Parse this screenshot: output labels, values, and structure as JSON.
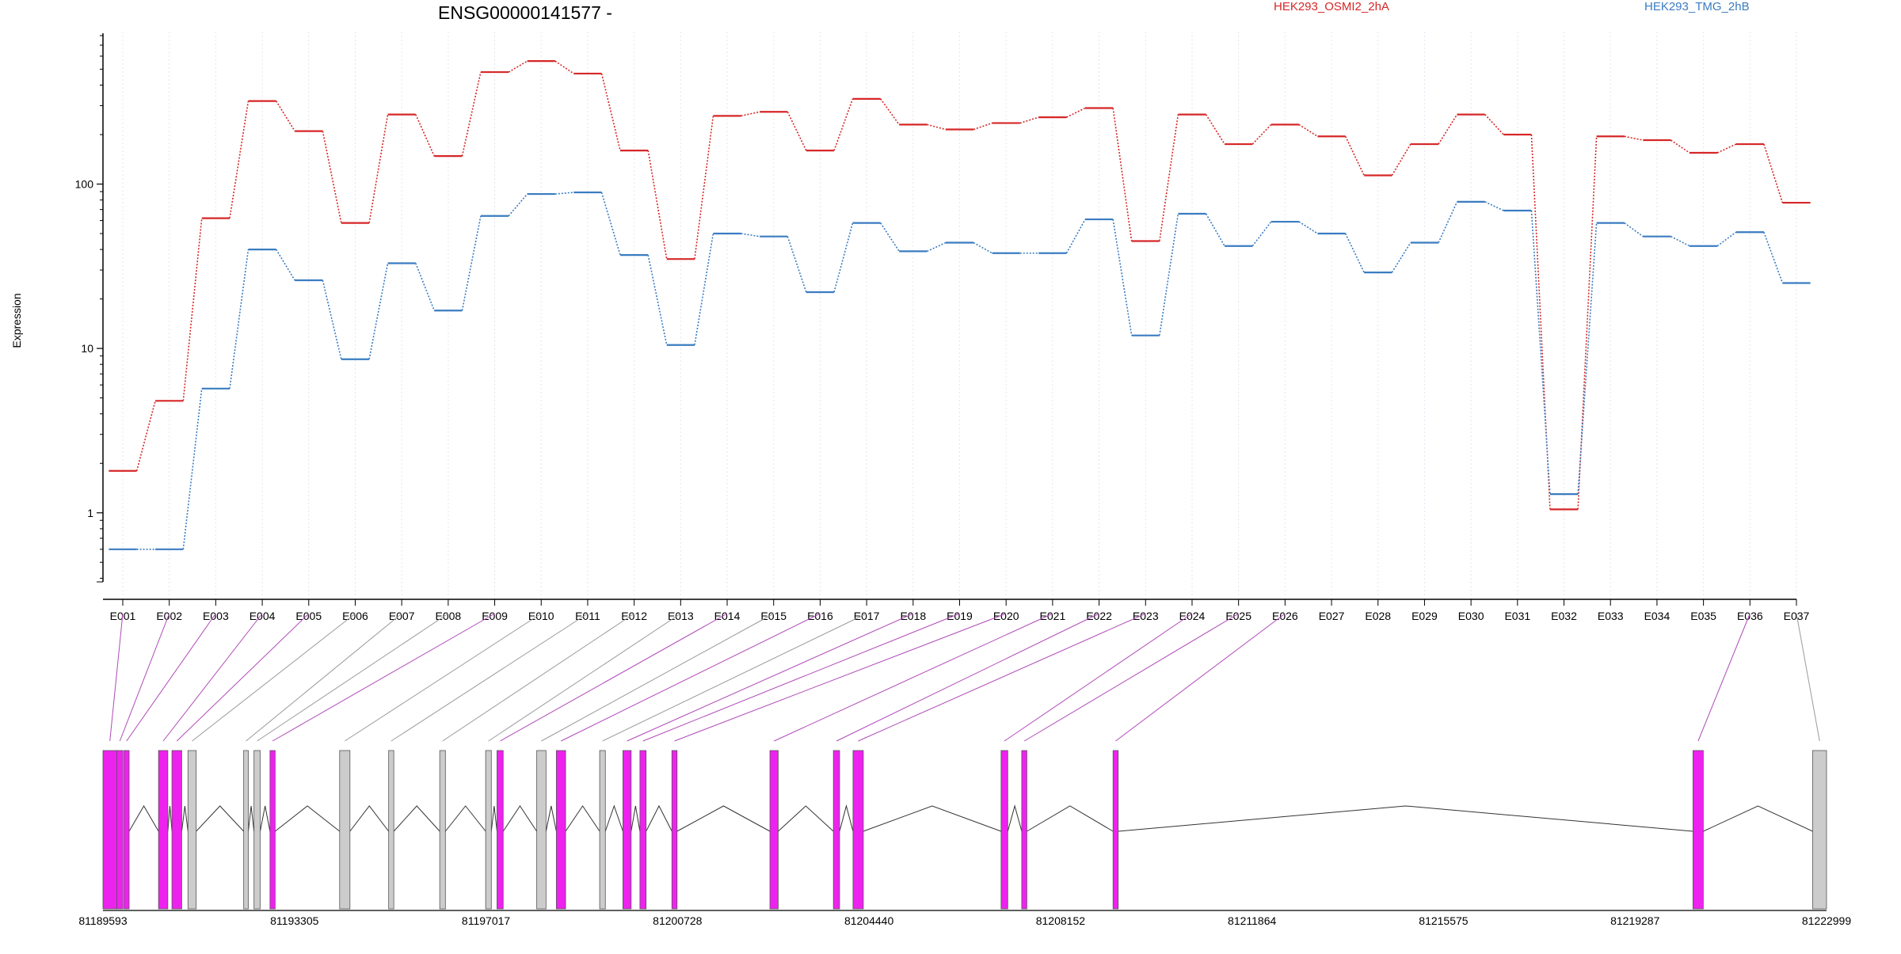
{
  "chart_data": {
    "type": "line",
    "title": "ENSG00000141577 -",
    "ylabel": "Expression",
    "xlabel": "",
    "y_scale": "log",
    "ylim": [
      0.38,
      800
    ],
    "y_ticks": [
      1,
      10,
      100
    ],
    "y_tick_labels": [
      "1",
      "10",
      "100"
    ],
    "grid": "vertical dotted lines at each exon",
    "legend_placement": "top",
    "categories": [
      "E001",
      "E002",
      "E003",
      "E004",
      "E005",
      "E006",
      "E007",
      "E008",
      "E009",
      "E010",
      "E011",
      "E012",
      "E013",
      "E014",
      "E015",
      "E016",
      "E017",
      "E018",
      "E019",
      "E020",
      "E021",
      "E022",
      "E023",
      "E024",
      "E025",
      "E026",
      "E027",
      "E028",
      "E029",
      "E030",
      "E031",
      "E032",
      "E033",
      "E034",
      "E035",
      "E036",
      "E037"
    ],
    "series": [
      {
        "name": "HEK293_OSMI2_2hA",
        "color": "#d62728",
        "values": [
          1.8,
          4.8,
          62,
          320,
          210,
          58,
          265,
          148,
          480,
          560,
          470,
          160,
          35,
          260,
          275,
          160,
          330,
          230,
          215,
          235,
          255,
          290,
          45,
          265,
          175,
          230,
          195,
          113,
          175,
          265,
          200,
          1.05,
          195,
          185,
          155,
          175,
          77
        ]
      },
      {
        "name": "HEK293_TMG_2hB",
        "color": "#3a7cc1",
        "values": [
          0.6,
          0.6,
          5.7,
          40,
          26,
          8.6,
          33,
          17,
          64,
          87,
          89,
          37,
          10.5,
          50,
          48,
          22,
          58,
          39,
          44,
          38,
          38,
          61,
          12,
          66,
          42,
          59,
          50,
          29,
          44,
          78,
          69,
          1.3,
          58,
          48,
          42,
          51,
          25
        ]
      }
    ],
    "gene_model": {
      "coordinate_labels": [
        "81189593",
        "81193305",
        "81197017",
        "81200728",
        "81204440",
        "81208152",
        "81211864",
        "81215575",
        "81219287",
        "81222999"
      ],
      "start": 81189593,
      "end": 81222999,
      "highlight_color": "#ee22ee",
      "neutral_color": "#cccccc",
      "exons": [
        {
          "start": 81189593,
          "end": 81189860,
          "type": "highlight",
          "link": 1
        },
        {
          "start": 81189860,
          "end": 81189980,
          "type": "highlight",
          "link": 2
        },
        {
          "start": 81190000,
          "end": 81190100,
          "type": "highlight",
          "link": 3
        },
        {
          "start": 81190670,
          "end": 81190850,
          "type": "highlight",
          "link": 4
        },
        {
          "start": 81190930,
          "end": 81191120,
          "type": "highlight",
          "link": 5
        },
        {
          "start": 81191240,
          "end": 81191400,
          "type": "neutral",
          "link": 6
        },
        {
          "start": 81192320,
          "end": 81192410,
          "type": "neutral",
          "link": 7
        },
        {
          "start": 81192520,
          "end": 81192640,
          "type": "neutral",
          "link": 8
        },
        {
          "start": 81192830,
          "end": 81192930,
          "type": "highlight",
          "link": 9
        },
        {
          "start": 81194180,
          "end": 81194380,
          "type": "neutral",
          "link": 10
        },
        {
          "start": 81195130,
          "end": 81195230,
          "type": "neutral",
          "link": 11
        },
        {
          "start": 81196120,
          "end": 81196230,
          "type": "neutral",
          "link": 12
        },
        {
          "start": 81197010,
          "end": 81197120,
          "type": "neutral",
          "link": 13
        },
        {
          "start": 81197230,
          "end": 81197350,
          "type": "highlight",
          "link": 14
        },
        {
          "start": 81198000,
          "end": 81198180,
          "type": "neutral",
          "link": 15
        },
        {
          "start": 81198380,
          "end": 81198560,
          "type": "highlight",
          "link": 16
        },
        {
          "start": 81199220,
          "end": 81199330,
          "type": "neutral",
          "link": 17
        },
        {
          "start": 81199670,
          "end": 81199830,
          "type": "highlight",
          "link": 18
        },
        {
          "start": 81200000,
          "end": 81200120,
          "type": "highlight",
          "link": 19
        },
        {
          "start": 81200620,
          "end": 81200720,
          "type": "highlight",
          "link": 20
        },
        {
          "start": 81202520,
          "end": 81202680,
          "type": "highlight",
          "link": 21
        },
        {
          "start": 81203750,
          "end": 81203870,
          "type": "highlight",
          "link": 22
        },
        {
          "start": 81204130,
          "end": 81204330,
          "type": "highlight",
          "link": 23
        },
        {
          "start": 81207000,
          "end": 81207130,
          "type": "highlight",
          "link": 24
        },
        {
          "start": 81207400,
          "end": 81207500,
          "type": "highlight",
          "link": 25
        },
        {
          "start": 81209170,
          "end": 81209270,
          "type": "highlight",
          "link": 26
        },
        {
          "start": 81220410,
          "end": 81220610,
          "type": "highlight",
          "link": 36
        },
        {
          "start": 81222730,
          "end": 81222999,
          "type": "neutral",
          "link": 37
        }
      ]
    }
  }
}
